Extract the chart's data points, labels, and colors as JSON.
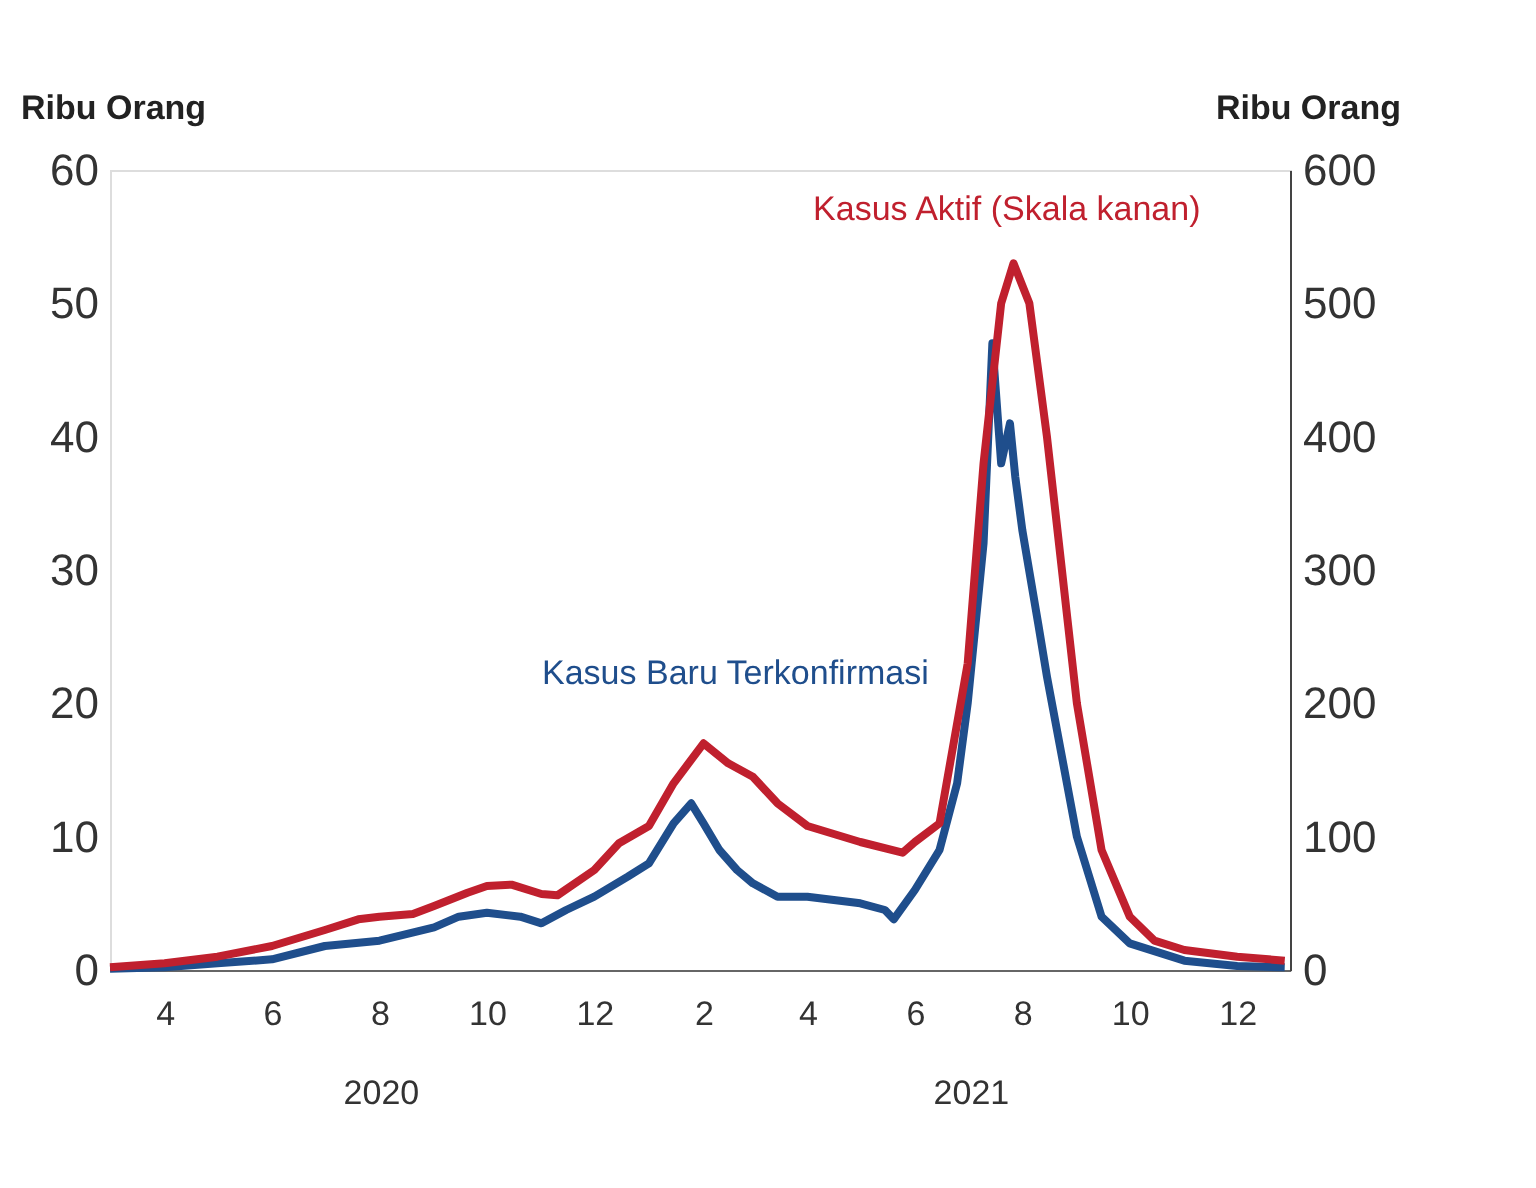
{
  "chart_data": {
    "type": "line",
    "ylabel": "Ribu Orang",
    "y2label": "Ribu Orang",
    "x": [
      "2020-03-01",
      "2020-04-01",
      "2020-05-01",
      "2020-06-01",
      "2020-07-01",
      "2020-08-01",
      "2020-09-01",
      "2020-09-15",
      "2020-10-01",
      "2020-10-20",
      "2020-11-01",
      "2020-11-15",
      "2020-12-01",
      "2020-12-20",
      "2021-01-01",
      "2021-01-15",
      "2021-01-25",
      "2021-02-01",
      "2021-02-10",
      "2021-02-20",
      "2021-03-01",
      "2021-03-15",
      "2021-04-01",
      "2021-05-01",
      "2021-05-15",
      "2021-05-20",
      "2021-06-01",
      "2021-06-15",
      "2021-06-25",
      "2021-07-01",
      "2021-07-10",
      "2021-07-15",
      "2021-07-20",
      "2021-07-25",
      "2021-07-28",
      "2021-08-01",
      "2021-08-10",
      "2021-08-15",
      "2021-09-01",
      "2021-09-15",
      "2021-10-01",
      "2021-11-01",
      "2021-12-01",
      "2021-12-28"
    ],
    "series": [
      {
        "name": "Kasus Baru Terkonfirmasi",
        "color": "#1f4e8c",
        "values": [
          0.1,
          0.2,
          0.5,
          0.8,
          1.8,
          2.2,
          3.2,
          4.0,
          4.3,
          4.0,
          3.5,
          4.5,
          5.5,
          7.0,
          8.0,
          11.0,
          12.5,
          11.0,
          9.0,
          7.5,
          6.5,
          5.5,
          5.5,
          5.0,
          4.5,
          3.8,
          6.0,
          9.0,
          14.0,
          20.0,
          32.0,
          47.0,
          38.0,
          41.0,
          37.0,
          33.0,
          26.0,
          22.0,
          10.0,
          4.0,
          2.0,
          0.7,
          0.3,
          0.2
        ]
      },
      {
        "name": "Kasus Aktif (Skala kanan)",
        "color": "#c0202e",
        "axis": "y2",
        "x": [
          "2020-03-01",
          "2020-04-01",
          "2020-05-01",
          "2020-06-01",
          "2020-07-01",
          "2020-07-20",
          "2020-08-01",
          "2020-08-20",
          "2020-09-01",
          "2020-09-20",
          "2020-10-01",
          "2020-10-15",
          "2020-11-01",
          "2020-11-10",
          "2020-12-01",
          "2020-12-15",
          "2021-01-01",
          "2021-01-15",
          "2021-02-01",
          "2021-02-15",
          "2021-03-01",
          "2021-03-15",
          "2021-04-01",
          "2021-05-01",
          "2021-05-25",
          "2021-06-01",
          "2021-06-15",
          "2021-07-01",
          "2021-07-10",
          "2021-07-20",
          "2021-07-27",
          "2021-08-05",
          "2021-08-15",
          "2021-09-01",
          "2021-09-15",
          "2021-10-01",
          "2021-10-15",
          "2021-11-01",
          "2021-12-01",
          "2021-12-28"
        ],
        "values": [
          2,
          5,
          10,
          18,
          30,
          38,
          40,
          42,
          48,
          58,
          63,
          64,
          57,
          56,
          75,
          95,
          108,
          140,
          170,
          155,
          145,
          125,
          108,
          96,
          88,
          96,
          110,
          230,
          380,
          500,
          530,
          500,
          400,
          200,
          90,
          40,
          22,
          15,
          10,
          7
        ]
      }
    ],
    "xlim": [
      "2020-03-01",
      "2021-12-31"
    ],
    "xticks": [
      {
        "value": "2020-04-01",
        "label": "4"
      },
      {
        "value": "2020-06-01",
        "label": "6"
      },
      {
        "value": "2020-08-01",
        "label": "8"
      },
      {
        "value": "2020-10-01",
        "label": "10"
      },
      {
        "value": "2020-12-01",
        "label": "12"
      },
      {
        "value": "2021-02-01",
        "label": "2"
      },
      {
        "value": "2021-04-01",
        "label": "4"
      },
      {
        "value": "2021-06-01",
        "label": "6"
      },
      {
        "value": "2021-08-01",
        "label": "8"
      },
      {
        "value": "2021-10-01",
        "label": "10"
      },
      {
        "value": "2021-12-01",
        "label": "12"
      }
    ],
    "ylim": [
      0,
      60
    ],
    "yticks": [
      0,
      10,
      20,
      30,
      40,
      50,
      60
    ],
    "y2lim": [
      0,
      600
    ],
    "y2ticks": [
      0,
      100,
      200,
      300,
      400,
      500,
      600
    ],
    "annotations": [
      "2020",
      "2021"
    ],
    "grid": false,
    "legend": false,
    "line_style": "solid",
    "marker": "none"
  }
}
